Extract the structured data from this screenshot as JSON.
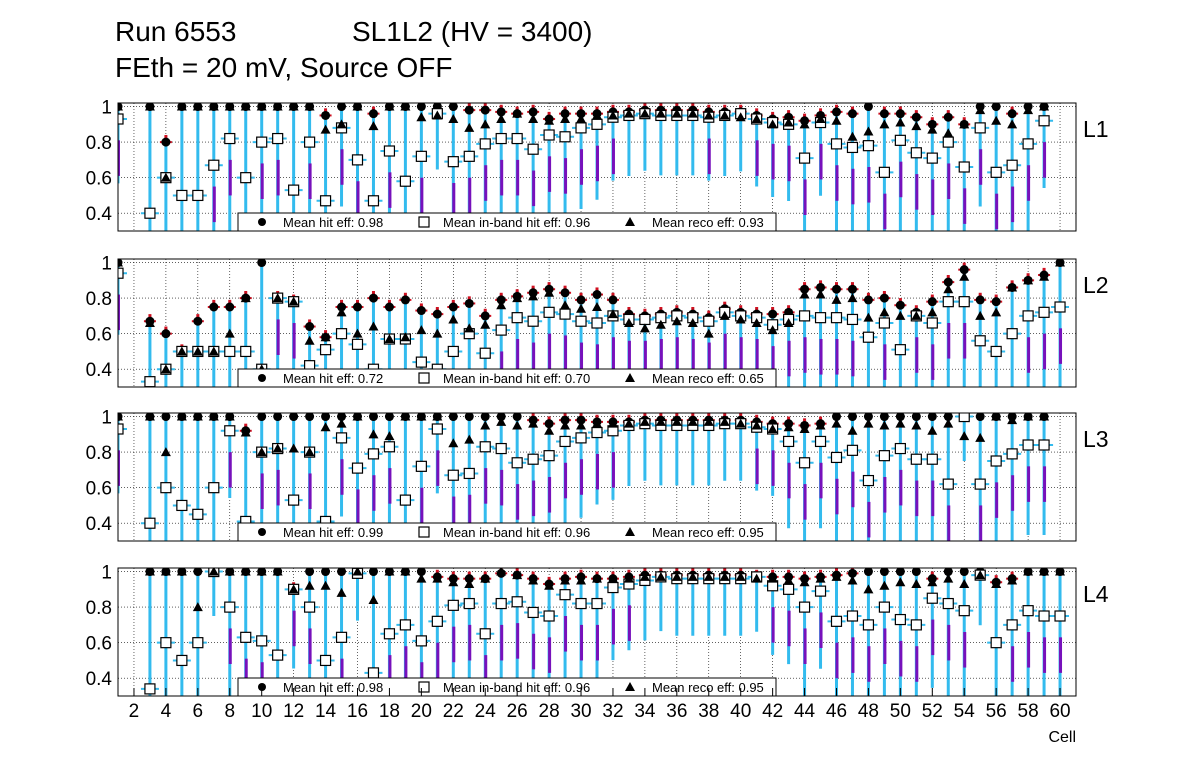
{
  "header": {
    "run": "Run 6553",
    "chamber": "SL1L2 (HV = 3400)",
    "conditions": "FEth = 20 mV, Source OFF"
  },
  "colors": {
    "hit_marker": "#000000",
    "inband_marker_fill": "#ffffff",
    "error_cyan": "#33bbee",
    "error_red": "#d01020",
    "error_purple": "#7711bb",
    "grid": "#000000"
  },
  "chart_data": {
    "type": "scatter",
    "xlabel": "Cell",
    "xlim": [
      1,
      61
    ],
    "x_ticks": [
      2,
      4,
      6,
      8,
      10,
      12,
      14,
      16,
      18,
      20,
      22,
      24,
      26,
      28,
      30,
      32,
      34,
      36,
      38,
      40,
      42,
      44,
      46,
      48,
      50,
      52,
      54,
      56,
      58,
      60
    ],
    "ylim": [
      0.3,
      1.02
    ],
    "y_ticks": [
      "0.4",
      "0.6",
      "0.8",
      "1"
    ],
    "legend_labels": {
      "hit": "Mean hit  eff: ",
      "inband": "Mean in-band hit eff: ",
      "reco": "Mean reco eff: "
    },
    "panels": [
      {
        "name": "L1",
        "mean_hit_eff": "0.98",
        "mean_inband_eff": "0.96",
        "mean_reco_eff": "0.93",
        "cells": [
          1,
          3,
          4,
          5,
          6,
          7,
          8,
          9,
          10,
          11,
          12,
          13,
          14,
          15,
          16,
          17,
          18,
          19,
          20,
          21,
          22,
          23,
          24,
          25,
          26,
          27,
          28,
          29,
          30,
          31,
          32,
          33,
          34,
          35,
          36,
          37,
          38,
          39,
          40,
          41,
          42,
          43,
          44,
          45,
          46,
          47,
          48,
          49,
          50,
          51,
          52,
          53,
          54,
          55,
          56,
          57,
          58,
          59
        ],
        "hit": [
          1,
          1,
          0.8,
          1,
          1,
          1,
          1,
          1,
          1,
          1,
          1,
          1,
          0.95,
          1,
          1,
          0.96,
          1,
          1,
          1,
          1,
          1,
          0.98,
          0.98,
          0.97,
          0.96,
          0.97,
          0.93,
          0.96,
          0.96,
          0.96,
          0.97,
          0.97,
          0.98,
          0.98,
          0.98,
          0.98,
          0.97,
          0.97,
          0.97,
          0.95,
          0.93,
          0.94,
          0.92,
          0.95,
          0.97,
          0.96,
          1,
          0.96,
          0.96,
          0.94,
          0.9,
          0.94,
          0.9,
          1,
          1,
          0.96,
          1,
          1
        ],
        "inband": [
          0.93,
          0.4,
          0.6,
          0.5,
          0.5,
          0.67,
          0.82,
          0.6,
          0.8,
          0.82,
          0.53,
          0.8,
          0.47,
          0.88,
          0.7,
          0.47,
          0.75,
          0.58,
          0.72,
          0.96,
          0.69,
          0.72,
          0.79,
          0.82,
          0.82,
          0.76,
          0.84,
          0.83,
          0.88,
          0.9,
          0.94,
          0.95,
          0.96,
          0.95,
          0.95,
          0.95,
          0.94,
          0.95,
          0.96,
          0.93,
          0.91,
          0.9,
          0.71,
          0.91,
          0.79,
          0.77,
          0.78,
          0.63,
          0.81,
          0.74,
          0.71,
          0.8,
          0.66,
          0.88,
          0.63,
          0.67,
          0.79,
          0.92
        ],
        "reco": [
          1,
          1,
          0.6,
          1,
          1,
          1,
          1,
          1,
          1,
          1,
          1,
          1,
          0.87,
          0.9,
          1,
          0.89,
          1,
          1,
          0.94,
          0.95,
          0.93,
          0.88,
          0.9,
          0.93,
          0.96,
          0.93,
          0.92,
          0.93,
          0.93,
          0.95,
          0.95,
          0.96,
          0.96,
          0.96,
          0.96,
          0.96,
          0.95,
          0.95,
          0.94,
          0.93,
          0.9,
          0.91,
          0.9,
          0.93,
          0.92,
          0.83,
          0.86,
          0.9,
          0.91,
          0.89,
          0.87,
          0.85,
          0.9,
          0.98,
          0.92,
          0.9,
          0.98,
          1
        ]
      },
      {
        "name": "L2",
        "mean_hit_eff": "0.72",
        "mean_inband_eff": "0.70",
        "mean_reco_eff": "0.65",
        "cells": [
          1,
          3,
          4,
          5,
          6,
          7,
          8,
          9,
          10,
          11,
          12,
          13,
          14,
          15,
          16,
          17,
          18,
          19,
          20,
          21,
          22,
          23,
          24,
          25,
          26,
          27,
          28,
          29,
          30,
          31,
          32,
          33,
          34,
          35,
          36,
          37,
          38,
          39,
          40,
          41,
          42,
          43,
          44,
          45,
          46,
          47,
          48,
          49,
          50,
          51,
          52,
          53,
          54,
          55,
          56,
          57,
          58,
          59,
          60
        ],
        "hit": [
          1,
          0.67,
          0.6,
          0.5,
          0.67,
          0.75,
          0.75,
          0.8,
          1,
          0.8,
          0.78,
          0.64,
          0.58,
          0.75,
          0.75,
          0.8,
          0.75,
          0.79,
          0.73,
          0.71,
          0.75,
          0.77,
          0.7,
          0.79,
          0.81,
          0.83,
          0.85,
          0.83,
          0.79,
          0.82,
          0.79,
          0.71,
          0.7,
          0.71,
          0.72,
          0.71,
          0.69,
          0.74,
          0.72,
          0.71,
          0.71,
          0.72,
          0.85,
          0.86,
          0.85,
          0.85,
          0.79,
          0.8,
          0.76,
          0.72,
          0.78,
          0.89,
          0.96,
          0.79,
          0.78,
          0.86,
          0.9,
          0.93,
          1
        ],
        "inband": [
          0.94,
          0.33,
          0.4,
          0.5,
          0.5,
          0.5,
          0.5,
          0.5,
          0.4,
          0.8,
          0.78,
          0.42,
          0.51,
          0.6,
          0.54,
          0.4,
          0.57,
          0.57,
          0.44,
          0.4,
          0.5,
          0.6,
          0.49,
          0.62,
          0.69,
          0.67,
          0.72,
          0.71,
          0.67,
          0.66,
          0.7,
          0.68,
          0.68,
          0.69,
          0.7,
          0.69,
          0.67,
          0.72,
          0.7,
          0.69,
          0.65,
          0.68,
          0.7,
          0.69,
          0.69,
          0.68,
          0.58,
          0.66,
          0.51,
          0.7,
          0.66,
          0.78,
          0.78,
          0.56,
          0.5,
          0.6,
          0.7,
          0.72,
          0.75
        ],
        "reco": [
          1,
          0.66,
          0.4,
          0.5,
          0.5,
          0.5,
          0.6,
          0.8,
          0.4,
          0.8,
          0.78,
          0.56,
          0.58,
          0.72,
          0.6,
          0.64,
          0.57,
          0.58,
          0.62,
          0.6,
          0.68,
          0.63,
          0.65,
          0.76,
          0.8,
          0.81,
          0.83,
          0.76,
          0.74,
          0.75,
          0.71,
          0.66,
          0.63,
          0.65,
          0.67,
          0.66,
          0.6,
          0.7,
          0.68,
          0.66,
          0.62,
          0.66,
          0.82,
          0.82,
          0.79,
          0.8,
          0.69,
          0.72,
          0.7,
          0.7,
          0.72,
          0.85,
          0.92,
          0.7,
          0.72,
          0.86,
          0.9,
          0.92,
          1
        ]
      },
      {
        "name": "L3",
        "mean_hit_eff": "0.99",
        "mean_inband_eff": "0.96",
        "mean_reco_eff": "0.95",
        "cells": [
          1,
          3,
          4,
          5,
          6,
          7,
          8,
          9,
          10,
          11,
          12,
          13,
          14,
          15,
          16,
          17,
          18,
          19,
          20,
          21,
          22,
          23,
          24,
          25,
          26,
          27,
          28,
          29,
          30,
          31,
          32,
          33,
          34,
          35,
          36,
          37,
          38,
          39,
          40,
          41,
          42,
          43,
          44,
          45,
          46,
          47,
          48,
          49,
          50,
          51,
          52,
          53,
          54,
          55,
          56,
          57,
          58,
          59
        ],
        "hit": [
          1,
          1,
          1,
          1,
          1,
          1,
          1,
          0.92,
          1,
          1,
          1,
          1,
          1,
          1,
          1,
          1,
          1,
          1,
          1,
          1,
          1,
          1,
          1,
          1,
          1,
          0.98,
          0.96,
          0.98,
          0.98,
          0.97,
          0.97,
          0.97,
          0.98,
          0.98,
          0.98,
          0.98,
          0.98,
          0.98,
          0.98,
          0.97,
          0.96,
          0.96,
          0.95,
          0.96,
          1,
          1,
          1,
          1,
          1,
          1,
          1,
          1,
          1,
          1,
          1,
          1,
          1,
          1
        ],
        "inband": [
          0.93,
          0.4,
          0.6,
          0.5,
          0.45,
          0.6,
          0.92,
          0.41,
          0.8,
          0.82,
          0.53,
          0.8,
          0.41,
          0.88,
          0.71,
          0.79,
          0.83,
          0.53,
          0.72,
          0.93,
          0.67,
          0.68,
          0.83,
          0.82,
          0.74,
          0.76,
          0.78,
          0.86,
          0.88,
          0.91,
          0.92,
          0.95,
          0.96,
          0.95,
          0.95,
          0.95,
          0.95,
          0.96,
          0.96,
          0.94,
          0.93,
          0.86,
          0.74,
          0.86,
          0.77,
          0.81,
          0.64,
          0.78,
          0.82,
          0.76,
          0.76,
          0.62,
          1,
          0.62,
          0.75,
          0.79,
          0.84,
          0.84
        ],
        "reco": [
          1,
          1,
          0.8,
          1,
          1,
          1,
          1,
          0.91,
          0.8,
          0.82,
          0.82,
          0.8,
          0.94,
          0.96,
          1,
          0.9,
          0.89,
          1,
          1,
          1,
          0.85,
          0.87,
          0.95,
          0.97,
          0.95,
          0.96,
          0.92,
          0.95,
          0.95,
          0.96,
          0.96,
          0.96,
          0.97,
          0.97,
          0.97,
          0.97,
          0.97,
          0.97,
          0.96,
          0.95,
          0.93,
          0.94,
          0.93,
          0.95,
          0.96,
          0.92,
          0.96,
          0.95,
          0.96,
          0.95,
          0.92,
          0.96,
          0.89,
          0.88,
          1,
          0.98,
          1,
          1
        ]
      },
      {
        "name": "L4",
        "mean_hit_eff": "0.98",
        "mean_inband_eff": "0.96",
        "mean_reco_eff": "0.95",
        "cells": [
          3,
          4,
          5,
          6,
          7,
          8,
          9,
          10,
          11,
          12,
          13,
          14,
          15,
          16,
          17,
          18,
          19,
          20,
          21,
          22,
          23,
          24,
          25,
          26,
          27,
          28,
          29,
          30,
          31,
          32,
          33,
          34,
          35,
          36,
          37,
          38,
          39,
          40,
          41,
          42,
          43,
          44,
          45,
          46,
          47,
          48,
          49,
          50,
          51,
          52,
          53,
          54,
          55,
          56,
          57,
          58,
          59,
          60
        ],
        "hit": [
          1,
          1,
          1,
          1,
          1,
          1,
          1,
          1,
          1,
          0.9,
          1,
          1,
          1,
          1,
          1,
          1,
          1,
          1,
          0.97,
          0.96,
          0.96,
          0.96,
          0.99,
          0.98,
          0.96,
          0.93,
          0.96,
          0.97,
          0.96,
          0.96,
          0.97,
          0.98,
          0.98,
          0.98,
          0.98,
          0.98,
          0.98,
          0.98,
          0.97,
          0.97,
          0.97,
          0.96,
          0.97,
          0.98,
          0.99,
          1,
          1,
          1,
          1,
          0.96,
          1,
          1,
          1,
          0.94,
          0.96,
          1,
          1,
          1
        ],
        "inband": [
          0.34,
          0.6,
          0.5,
          0.6,
          1,
          0.8,
          0.63,
          0.61,
          0.53,
          0.9,
          0.8,
          0.5,
          0.63,
          0.99,
          0.43,
          0.65,
          0.7,
          0.61,
          0.72,
          0.81,
          0.82,
          0.65,
          0.82,
          0.83,
          0.77,
          0.75,
          0.87,
          0.82,
          0.82,
          0.91,
          0.93,
          0.95,
          0.97,
          0.96,
          0.96,
          0.96,
          0.96,
          0.96,
          0.97,
          0.92,
          0.9,
          0.8,
          0.89,
          0.72,
          0.75,
          0.7,
          0.8,
          0.73,
          0.7,
          0.85,
          0.82,
          0.78,
          0.98,
          0.6,
          0.7,
          0.78,
          0.75,
          0.75
        ],
        "reco": [
          1,
          1,
          1,
          0.8,
          1,
          1,
          1,
          1,
          1,
          0.9,
          0.92,
          0.92,
          0.88,
          1,
          0.84,
          1,
          1,
          0.96,
          0.96,
          0.94,
          0.93,
          0.96,
          1,
          0.98,
          0.95,
          0.92,
          0.95,
          0.95,
          0.96,
          0.96,
          0.96,
          0.97,
          0.97,
          0.97,
          0.97,
          0.97,
          0.97,
          0.97,
          0.96,
          0.96,
          0.95,
          0.94,
          0.96,
          0.97,
          0.95,
          0.9,
          0.92,
          0.94,
          0.93,
          0.94,
          0.96,
          0.93,
          0.98,
          0.93,
          0.95,
          1,
          1,
          1
        ]
      }
    ]
  }
}
